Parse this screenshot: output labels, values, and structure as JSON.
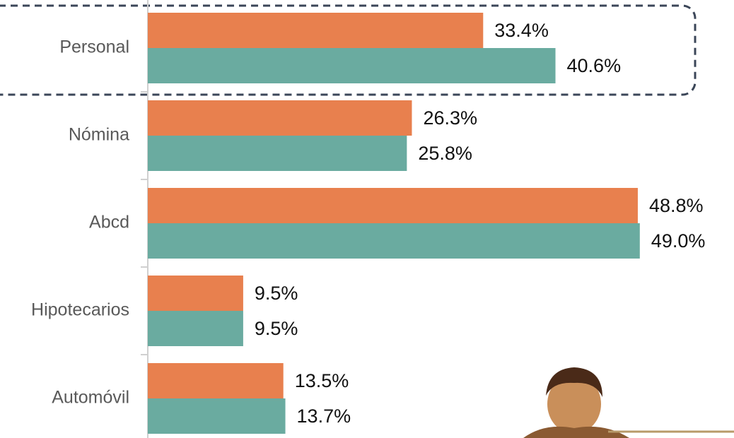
{
  "chart_data": {
    "type": "bar",
    "orientation": "horizontal",
    "categories": [
      "Personal",
      "Nómina",
      "Abcd",
      "Hipotecarios",
      "Automóvil"
    ],
    "series": [
      {
        "color": "#e8804e",
        "values": [
          33.4,
          26.3,
          48.8,
          9.5,
          13.5
        ],
        "value_labels": [
          "33.4%",
          "26.3%",
          "48.8%",
          "9.5%",
          "13.5%"
        ]
      },
      {
        "color": "#6aaba0",
        "values": [
          40.6,
          25.8,
          49.0,
          9.5,
          13.7
        ],
        "value_labels": [
          "40.6%",
          "25.8%",
          "49.0%",
          "9.5%",
          "13.7%"
        ]
      }
    ]
  }
}
